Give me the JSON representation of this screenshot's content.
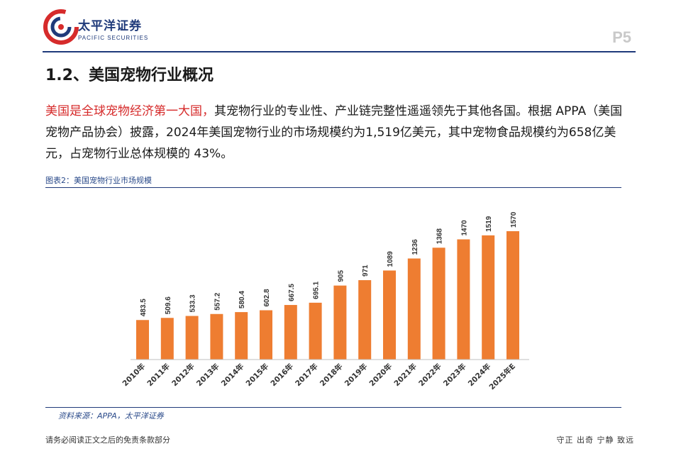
{
  "header": {
    "brand_cn": "太平洋证券",
    "brand_en": "PACIFIC SECURITIES",
    "page_number": "P5"
  },
  "section": {
    "title": "1.2、美国宠物行业概况"
  },
  "body": {
    "highlight": "美国是全球宠物经济第一大国，",
    "text": "其宠物行业的专业性、产业链完整性遥遥领先于其他各国。根据 APPA（美国宠物产品协会）披露，2024年美国宠物行业的市场规模约为1,519亿美元，其中宠物食品规模约为658亿美元，占宠物行业总体规模的 43%。"
  },
  "figure": {
    "label": "图表2：美国宠物行业市场规模",
    "source": "资料来源：APPA，太平洋证券"
  },
  "footer": {
    "left": "请务必阅读正文之后的免责条款部分",
    "right": "守正 出奇 宁静 致远"
  },
  "colors": {
    "bar": "#ee7d31",
    "brand": "#1f3a7a",
    "highlight": "#d62b2b"
  },
  "chart_data": {
    "type": "bar",
    "title": "",
    "xlabel": "",
    "ylabel": "",
    "categories": [
      "2010年",
      "2011年",
      "2012年",
      "2013年",
      "2014年",
      "2015年",
      "2016年",
      "2017年",
      "2018年",
      "2019年",
      "2020年",
      "2021年",
      "2022年",
      "2023年",
      "2024年",
      "2025年E"
    ],
    "values": [
      483.5,
      509.6,
      533.3,
      557.2,
      580.4,
      602.8,
      667.5,
      695.1,
      905,
      971,
      1089,
      1236,
      1368,
      1470,
      1519,
      1570
    ],
    "labels": [
      "483.5",
      "509.6",
      "533.3",
      "557.2",
      "580.4",
      "602.8",
      "667.5",
      "695.1",
      "905",
      "971",
      "1089",
      "1236",
      "1368",
      "1470",
      "1519",
      "1570"
    ],
    "ylim": [
      0,
      1700
    ],
    "grid": false,
    "legend": "none",
    "value_labels": "rotated above bars",
    "x_tick_labels": "rotated"
  }
}
